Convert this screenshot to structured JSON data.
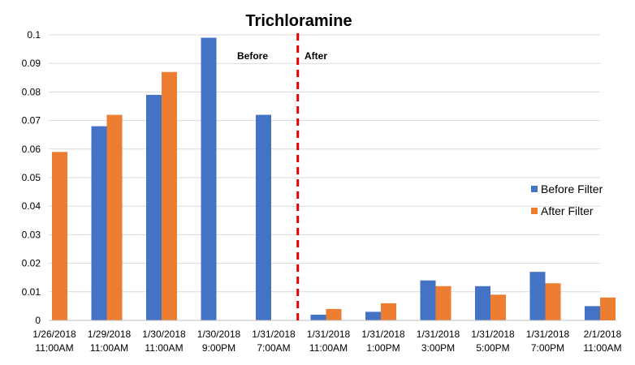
{
  "chart_data": {
    "type": "bar",
    "title": "Trichloramine",
    "xlabel": "",
    "ylabel": "",
    "ylim": [
      0,
      0.1
    ],
    "yticks": [
      "0",
      "0.01",
      "0.02",
      "0.03",
      "0.04",
      "0.05",
      "0.06",
      "0.07",
      "0.08",
      "0.09",
      "0.1"
    ],
    "grid": true,
    "legend_position": "right",
    "categories": [
      [
        "1/26/2018",
        "11:00AM"
      ],
      [
        "1/29/2018",
        "11:00AM"
      ],
      [
        "1/30/2018",
        "11:00AM"
      ],
      [
        "1/30/2018",
        "9:00PM"
      ],
      [
        "1/31/2018",
        "7:00AM"
      ],
      [
        "1/31/2018",
        "11:00AM"
      ],
      [
        "1/31/2018",
        "1:00PM"
      ],
      [
        "1/31/2018",
        "3:00PM"
      ],
      [
        "1/31/2018",
        "5:00PM"
      ],
      [
        "1/31/2018",
        "7:00PM"
      ],
      [
        "2/1/2018",
        "11:00AM"
      ]
    ],
    "series": [
      {
        "name": "Before Filter",
        "color": "#4472C4",
        "values": [
          null,
          0.068,
          0.079,
          0.099,
          0.072,
          0.002,
          0.003,
          0.014,
          0.012,
          0.017,
          0.005
        ]
      },
      {
        "name": "After Filter",
        "color": "#ED7D31",
        "values": [
          0.059,
          0.072,
          0.087,
          null,
          null,
          0.004,
          0.006,
          0.012,
          0.009,
          0.013,
          0.008
        ]
      }
    ],
    "divider": {
      "after_category_index": 4,
      "color": "#E00000"
    },
    "annotations": {
      "before": "Before",
      "after": "After"
    }
  }
}
